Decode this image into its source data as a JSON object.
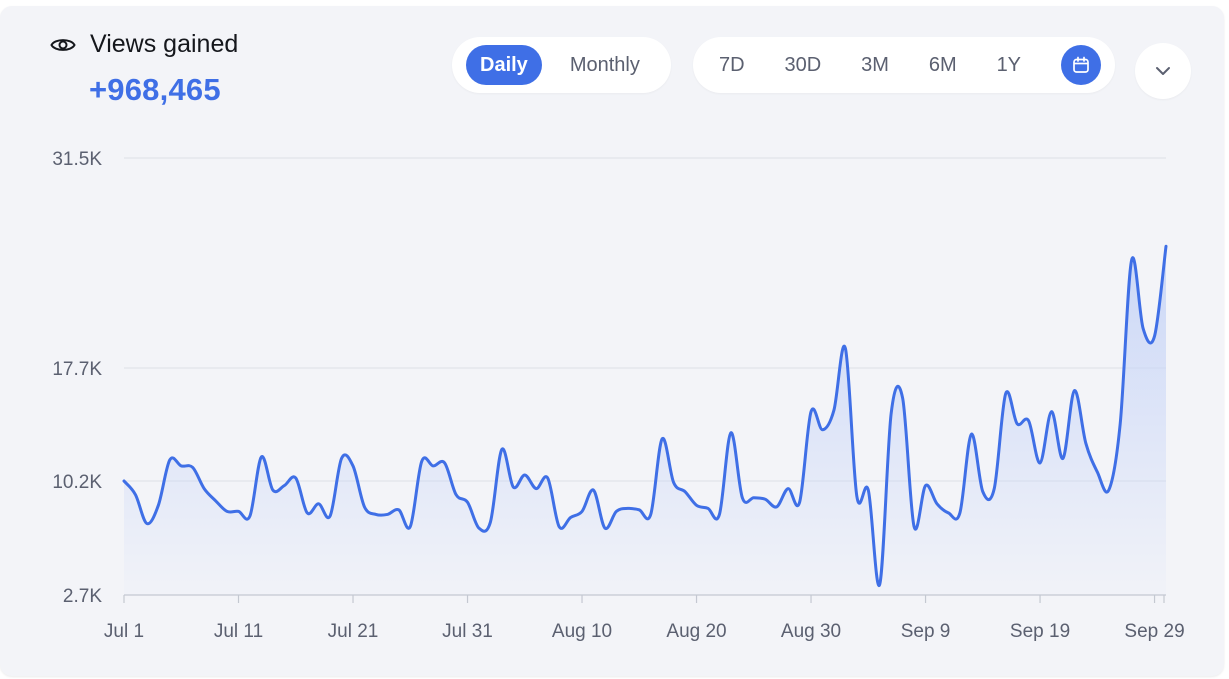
{
  "header": {
    "title": "Views gained",
    "total": "+968,465"
  },
  "modes": [
    "Daily",
    "Monthly"
  ],
  "active_mode": "Daily",
  "ranges": [
    "7D",
    "30D",
    "3M",
    "6M",
    "1Y"
  ],
  "colors": {
    "accent": "#3f6fe6",
    "line": "#3f6fe6",
    "area": "#c9d6f7",
    "grid": "#dcdfe6"
  },
  "icons": {
    "title": "eye-icon",
    "calendar": "calendar-icon",
    "dropdown": "chevron-down-icon"
  },
  "chart_data": {
    "type": "area",
    "y_ticks": [
      2700,
      10200,
      17700,
      31500
    ],
    "y_tick_labels": [
      "2.7K",
      "10.2K",
      "17.7K",
      "31.5K"
    ],
    "x_tick_labels": [
      "Jul 1",
      "Jul 11",
      "Jul 21",
      "Jul 31",
      "Aug 10",
      "Aug 20",
      "Aug 30",
      "Sep 9",
      "Sep 19",
      "Sep 29"
    ],
    "x_tick_index": [
      0,
      10,
      20,
      30,
      40,
      50,
      60,
      70,
      80,
      90
    ],
    "grid": "horizontal",
    "series": [
      {
        "values": [
          10200,
          9300,
          7400,
          8600,
          11600,
          11200,
          11100,
          9700,
          8900,
          8200,
          8200,
          7900,
          11800,
          9600,
          9900,
          10400,
          8100,
          8700,
          7900,
          11700,
          11200,
          8500,
          8000,
          8000,
          8300,
          7200,
          11500,
          11200,
          11400,
          9300,
          8800,
          7100,
          7500,
          12300,
          9800,
          10600,
          9700,
          10400,
          7200,
          7800,
          8200,
          9600,
          7100,
          8200,
          8400,
          8300,
          8000,
          13000,
          10100,
          9500,
          8600,
          8400,
          8000,
          13400,
          9100,
          9100,
          9000,
          8500,
          9700,
          8800,
          14800,
          13600,
          14900,
          19000,
          9200,
          9600,
          3400,
          14700,
          15700,
          7200,
          9900,
          8700,
          8100,
          8100,
          13300,
          9500,
          9700,
          16000,
          14000,
          14200,
          11400,
          14800,
          11700,
          16200,
          12700,
          10800,
          9600,
          14000,
          24800,
          20300,
          19800,
          25700
        ]
      }
    ]
  }
}
